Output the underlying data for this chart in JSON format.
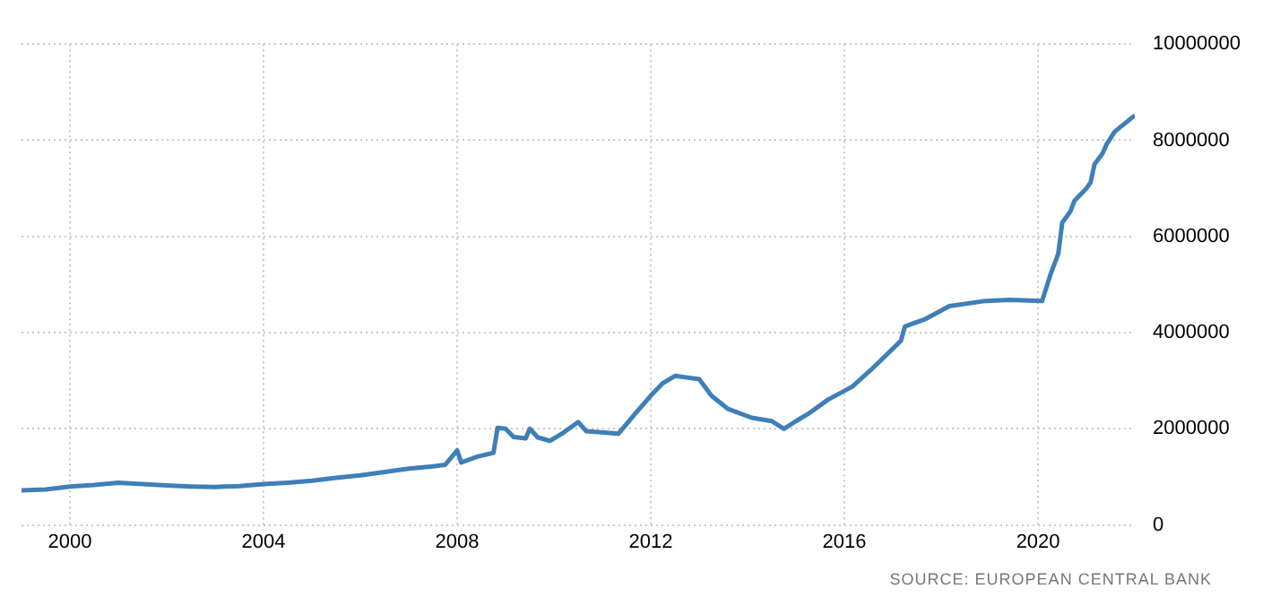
{
  "chart_data": {
    "type": "line",
    "x": [
      "1999-01",
      "1999-07",
      "2000-01",
      "2000-07",
      "2001-01",
      "2001-07",
      "2002-01",
      "2002-07",
      "2003-01",
      "2003-07",
      "2004-01",
      "2004-07",
      "2005-01",
      "2005-07",
      "2006-01",
      "2006-07",
      "2007-01",
      "2007-07",
      "2007-10",
      "2008-01",
      "2008-02",
      "2008-06",
      "2008-10",
      "2008-11",
      "2009-01",
      "2009-03",
      "2009-06",
      "2009-07",
      "2009-09",
      "2009-12",
      "2010-03",
      "2010-07",
      "2010-09",
      "2010-12",
      "2011-05",
      "2011-09",
      "2012-01",
      "2012-04",
      "2012-07",
      "2013-01",
      "2013-04",
      "2013-08",
      "2014-02",
      "2014-07",
      "2014-10",
      "2015-01",
      "2015-04",
      "2015-09",
      "2016-03",
      "2016-08",
      "2017-03",
      "2017-04",
      "2017-09",
      "2018-03",
      "2018-12",
      "2019-06",
      "2020-02",
      "2020-04",
      "2020-06",
      "2020-07",
      "2020-09",
      "2020-10",
      "2021-01",
      "2021-02",
      "2021-03",
      "2021-05",
      "2021-06",
      "2021-08",
      "2022-01"
    ],
    "series": [
      {
        "color": "#3f7fb8",
        "values": [
          720000,
          740000,
          800000,
          830000,
          880000,
          850000,
          820000,
          800000,
          790000,
          810000,
          850000,
          880000,
          920000,
          980000,
          1030000,
          1100000,
          1170000,
          1220000,
          1250000,
          1550000,
          1300000,
          1420000,
          1500000,
          2020000,
          2000000,
          1830000,
          1800000,
          2000000,
          1820000,
          1750000,
          1900000,
          2140000,
          1950000,
          1930000,
          1900000,
          2300000,
          2690000,
          2950000,
          3100000,
          3030000,
          2690000,
          2420000,
          2230000,
          2160000,
          2000000,
          2160000,
          2310000,
          2610000,
          2880000,
          3260000,
          3830000,
          4130000,
          4280000,
          4550000,
          4660000,
          4680000,
          4660000,
          5190000,
          5640000,
          6290000,
          6520000,
          6740000,
          7000000,
          7120000,
          7500000,
          7730000,
          7920000,
          8180000,
          8520000
        ]
      }
    ],
    "xlim": [
      "1999-01",
      "2022-01"
    ],
    "xticks": [
      "2000",
      "2004",
      "2008",
      "2012",
      "2016",
      "2020"
    ],
    "ylim": [
      0,
      10000000
    ],
    "yticks": [
      0,
      2000000,
      4000000,
      6000000,
      8000000,
      10000000
    ],
    "grid": true,
    "line_style": "solid",
    "annotations": [
      "SOURCE: EUROPEAN CENTRAL BANK"
    ]
  }
}
